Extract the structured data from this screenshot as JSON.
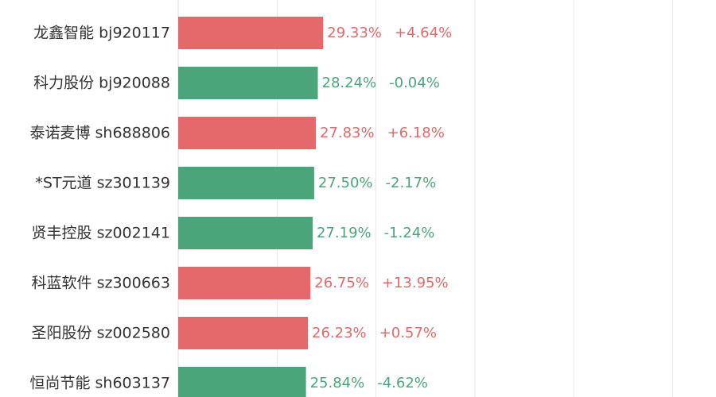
{
  "chart_data": {
    "type": "bar",
    "orientation": "horizontal",
    "title": "",
    "xlabel": "",
    "ylabel": "",
    "xlim": [
      0,
      100
    ],
    "grid": true,
    "legend": "none",
    "colors": {
      "up": "#e5686a",
      "down": "#4aa67a"
    },
    "categories": [
      "龙鑫智能  bj920117",
      "科力股份  bj920088",
      "泰诺麦博  sh688806",
      "*ST元道  sz301139",
      "贤丰控股  sz002141",
      "科蓝软件  sz300663",
      "圣阳股份  sz002580",
      "恒尚节能  sh603137"
    ],
    "series": [
      {
        "values": [
          29.33,
          28.24,
          27.83,
          27.5,
          27.19,
          26.75,
          26.23,
          25.84
        ],
        "value_labels": [
          "29.33%",
          "28.24%",
          "27.83%",
          "27.50%",
          "27.19%",
          "26.75%",
          "26.23%",
          "25.84%"
        ]
      },
      {
        "values": [
          4.64,
          -0.04,
          6.18,
          -2.17,
          -1.24,
          13.95,
          0.57,
          -4.62
        ],
        "value_labels": [
          "+4.64%",
          "-0.04%",
          "+6.18%",
          "-2.17%",
          "-1.24%",
          "+13.95%",
          "+0.57%",
          "-4.62%"
        ]
      }
    ]
  }
}
